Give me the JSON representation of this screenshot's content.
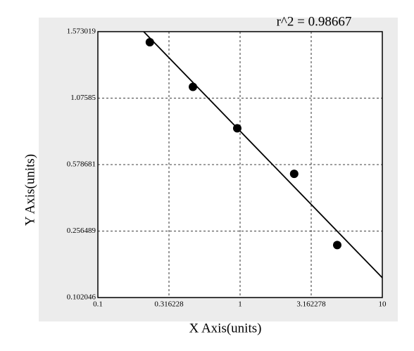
{
  "chart_data": {
    "type": "scatter",
    "annotation": "r^2  = 0.98667",
    "x_label": "X Axis(units)",
    "y_label": "Y Axis(units)",
    "xscale": "log",
    "yscale": "tick-spaced",
    "xlim": [
      0.1,
      10
    ],
    "xticks": [
      0.1,
      0.316228,
      1,
      3.162278,
      10
    ],
    "ylim": [
      0.102046,
      1.573019
    ],
    "yticks": [
      0.102046,
      0.256489,
      0.578681,
      1.07585,
      1.573019
    ],
    "grid": true,
    "series": [
      {
        "kind": "points",
        "color": "#000000",
        "x": [
          0.232,
          0.466,
          0.955,
          2.4,
          4.82
        ],
        "values": [
          1.494,
          1.16,
          0.85,
          0.534,
          0.224
        ]
      },
      {
        "kind": "line",
        "color": "#000000",
        "x": [
          0.21,
          10
        ],
        "values": [
          1.573019,
          0.148
        ]
      }
    ]
  }
}
